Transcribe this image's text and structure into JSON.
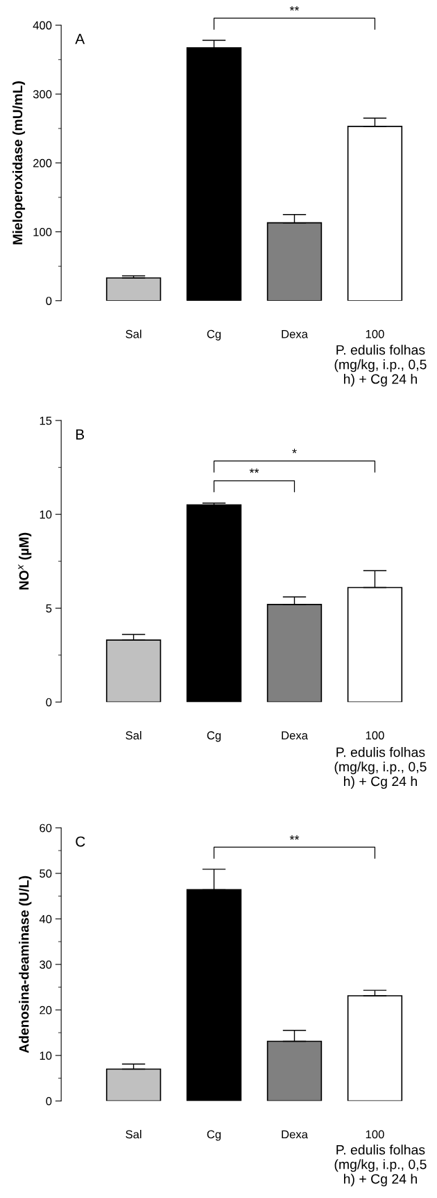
{
  "chart_data": [
    {
      "type": "bar",
      "title": "A",
      "ylabel": "Mieloperoxidase (mU/mL)",
      "xlabel": "P. edulis folhas\n(mg/kg, i.p., 0,5\nh) + Cg 24 h",
      "categories": [
        "Sal",
        "Cg",
        "Dexa",
        "100"
      ],
      "values": [
        33,
        367,
        113,
        253
      ],
      "errors": [
        3,
        11,
        12,
        12
      ],
      "colors": [
        "#c0c0c0",
        "#000000",
        "#808080",
        "#ffffff"
      ],
      "ylim": [
        0,
        400
      ],
      "yticks": [
        0,
        100,
        200,
        300,
        400
      ],
      "annotations": [
        "**"
      ]
    },
    {
      "type": "bar",
      "title": "B",
      "ylabel": "NO$^{x}$ (µM)",
      "xlabel": "P. edulis folhas\n(mg/kg, i.p., 0,5\nh) + Cg 24 h",
      "categories": [
        "Sal",
        "Cg",
        "Dexa",
        "100"
      ],
      "values": [
        3.3,
        10.5,
        5.2,
        6.1
      ],
      "errors": [
        0.3,
        0.1,
        0.4,
        0.9
      ],
      "colors": [
        "#c0c0c0",
        "#000000",
        "#808080",
        "#ffffff"
      ],
      "ylim": [
        0,
        15
      ],
      "yticks": [
        0,
        5,
        10,
        15
      ],
      "annotations": [
        "**",
        "*"
      ]
    },
    {
      "type": "bar",
      "title": "C",
      "ylabel": "Adenosina-deaminase (U/L)",
      "xlabel": "P. edulis folhas\n(mg/kg, i.p., 0,5\nh) + Cg 24 h",
      "categories": [
        "Sal",
        "Cg",
        "Dexa",
        "100"
      ],
      "values": [
        7,
        46.4,
        13.1,
        23.1
      ],
      "errors": [
        1.1,
        4.5,
        2.4,
        1.2
      ],
      "colors": [
        "#c0c0c0",
        "#000000",
        "#808080",
        "#ffffff"
      ],
      "ylim": [
        0,
        60
      ],
      "yticks": [
        0,
        10,
        20,
        30,
        40,
        50,
        60
      ],
      "annotations": [
        "**"
      ]
    }
  ]
}
